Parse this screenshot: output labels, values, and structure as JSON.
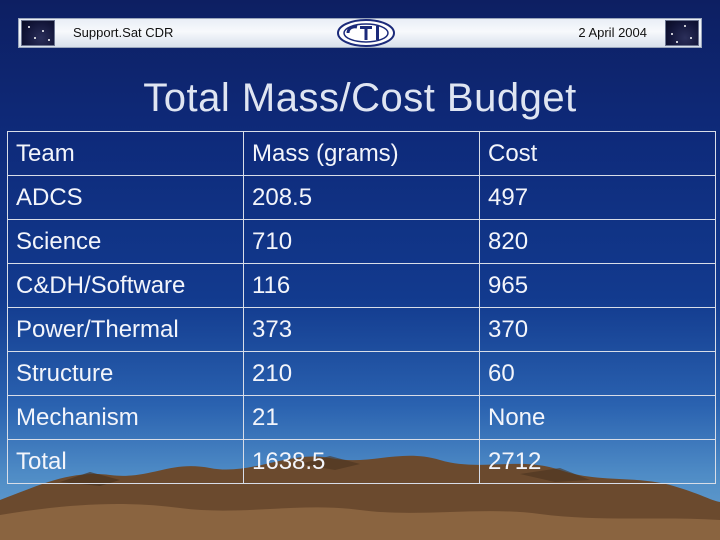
{
  "header": {
    "left_text": "Support.Sat CDR",
    "right_text": "2 April 2004",
    "logo_icon": "cti-logo-icon"
  },
  "title": "Total Mass/Cost Budget",
  "table": {
    "headers": [
      "Team",
      "Mass (grams)",
      "Cost"
    ],
    "rows": [
      [
        "ADCS",
        "208.5",
        "497"
      ],
      [
        "Science",
        "710",
        "820"
      ],
      [
        "C&DH/Software",
        "116",
        "965"
      ],
      [
        "Power/Thermal",
        "373",
        "370"
      ],
      [
        "Structure",
        "210",
        "60"
      ],
      [
        "Mechanism",
        "21",
        "None"
      ],
      [
        "Total",
        "1638.5",
        "2712"
      ]
    ]
  },
  "colors": {
    "background_top": "#0d1f62",
    "background_bottom": "#6aa3cf",
    "title_text": "#dfe5f2",
    "table_text": "#f3f5fb"
  }
}
